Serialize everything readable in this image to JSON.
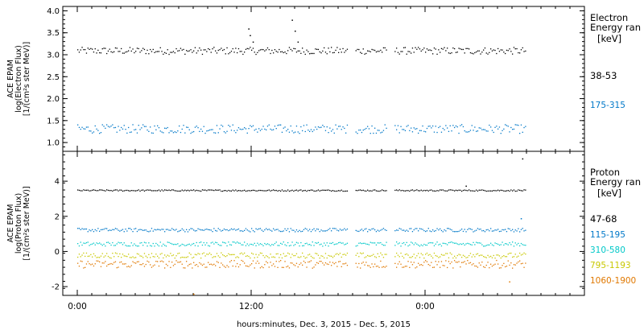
{
  "chart_data": [
    {
      "type": "scatter",
      "name": "electron-panel",
      "ylabel_lines": [
        "ACE EPAM",
        "log(Electron Flux)",
        "[1/(cm²s ster MeV)]"
      ],
      "ylim": [
        0.8,
        4.1
      ],
      "yticks": [
        "1.0",
        "1.5",
        "2.0",
        "2.5",
        "3.0",
        "3.5",
        "4.0"
      ],
      "ytick_values": [
        1.0,
        1.5,
        2.0,
        2.5,
        3.0,
        3.5,
        4.0
      ],
      "legend_title": [
        "Electron",
        "Energy ran",
        "[keV]"
      ],
      "series": [
        {
          "name": "38-53",
          "color": "#000000",
          "base": 3.1,
          "noise": 0.08,
          "spikes": [
            [
              11.8,
              3.6
            ],
            [
              11.9,
              3.45
            ],
            [
              12.1,
              3.3
            ],
            [
              14.8,
              3.8
            ],
            [
              15.0,
              3.55
            ],
            [
              15.2,
              3.3
            ]
          ]
        },
        {
          "name": "175-315",
          "color": "#0078c8",
          "base": 1.32,
          "noise": 0.1,
          "spikes": []
        }
      ]
    },
    {
      "type": "scatter",
      "name": "proton-panel",
      "ylabel_lines": [
        "ACE EPAM",
        "log(Proton Flux)",
        "[1/(cm²s ster MeV)]"
      ],
      "ylim": [
        -2.5,
        5.7
      ],
      "yticks": [
        "-2",
        "0",
        "2",
        "4"
      ],
      "ytick_values": [
        -2,
        0,
        2,
        4
      ],
      "legend_title": [
        "Proton",
        "Energy ran",
        "[keV]"
      ],
      "series": [
        {
          "name": "47-68",
          "color": "#000000",
          "base": 3.5,
          "noise": 0.04,
          "spikes": [
            [
              26.8,
              3.75
            ],
            [
              30.7,
              5.3
            ]
          ]
        },
        {
          "name": "115-195",
          "color": "#0078c8",
          "base": 1.25,
          "noise": 0.1,
          "spikes": [
            [
              30.6,
              1.9
            ]
          ]
        },
        {
          "name": "310-580",
          "color": "#00c8c8",
          "base": 0.45,
          "noise": 0.12,
          "spikes": []
        },
        {
          "name": "795-1193",
          "color": "#c8c800",
          "base": -0.2,
          "noise": 0.15,
          "spikes": []
        },
        {
          "name": "1060-1900",
          "color": "#e07800",
          "base": -0.7,
          "noise": 0.22,
          "spikes": [
            [
              8.0,
              -2.4
            ],
            [
              29.8,
              -1.7
            ]
          ]
        }
      ]
    }
  ],
  "x_axis": {
    "xlabel": "hours:minutes, Dec.  3, 2015 - Dec.  5, 2015",
    "tick_labels": [
      "0:00",
      "12:00",
      "0:00"
    ],
    "tick_hours": [
      0,
      12,
      24
    ],
    "xlim_hours": [
      -1,
      35
    ],
    "data_end_hours": 31,
    "gaps_hours": [
      [
        18.6,
        19.2
      ],
      [
        21.4,
        21.9
      ]
    ]
  }
}
